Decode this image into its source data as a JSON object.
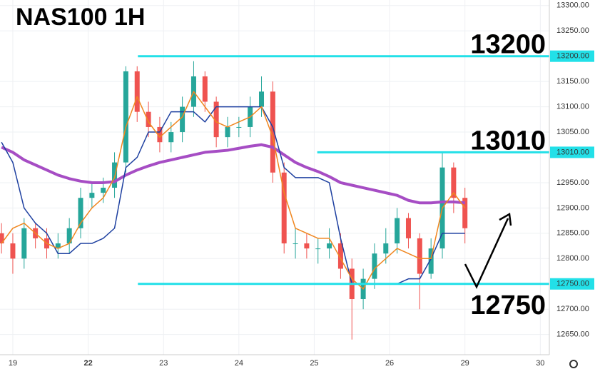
{
  "chart_data": {
    "type": "candlestick",
    "title": "NAS100 1H",
    "xlim": [
      -0.17,
      7.12
    ],
    "xticks": [
      {
        "value": 0,
        "label": "19"
      },
      {
        "value": 1,
        "label": "22"
      },
      {
        "value": 2,
        "label": "23"
      },
      {
        "value": 3,
        "label": "24"
      },
      {
        "value": 4,
        "label": "25"
      },
      {
        "value": 5,
        "label": "26"
      },
      {
        "value": 6,
        "label": "29"
      },
      {
        "value": 7,
        "label": "30"
      }
    ],
    "ylim": [
      12610,
      13311
    ],
    "yticks": [
      {
        "value": 12650,
        "label": "12650.00"
      },
      {
        "value": 12700,
        "label": "12700.00"
      },
      {
        "value": 12800,
        "label": "12800.00"
      },
      {
        "value": 12850,
        "label": "12850.00"
      },
      {
        "value": 12900,
        "label": "12900.00"
      },
      {
        "value": 12950,
        "label": "12950.00"
      },
      {
        "value": 13050,
        "label": "13050.00"
      },
      {
        "value": 13100,
        "label": "13100.00"
      },
      {
        "value": 13150,
        "label": "13150.00"
      },
      {
        "value": 13250,
        "label": "13250.00"
      },
      {
        "value": 13300,
        "label": "13300.00"
      }
    ],
    "grid": true,
    "up_color": "#26a69a",
    "down_color": "#ef5350",
    "x": [
      -0.15,
      0,
      0.15,
      0.3,
      0.45,
      0.6,
      0.75,
      0.9,
      1.05,
      1.2,
      1.35,
      1.5,
      1.65,
      1.8,
      1.95,
      2.1,
      2.25,
      2.4,
      2.55,
      2.7,
      2.85,
      3,
      3.15,
      3.3,
      3.45,
      3.6,
      3.75,
      3.9,
      4.05,
      4.2,
      4.35,
      4.5,
      4.65,
      4.8,
      4.95,
      5.1,
      5.25,
      5.4,
      5.55,
      5.7,
      5.85,
      6
    ],
    "open": [
      12850,
      12830,
      12800,
      12860,
      12840,
      12820,
      12830,
      12860,
      12920,
      12930,
      12940,
      12990,
      13170,
      13090,
      13060,
      13030,
      13050,
      13100,
      13160,
      13110,
      13040,
      13060,
      13060,
      13100,
      13130,
      12970,
      12830,
      12830,
      12820,
      12820,
      12830,
      12780,
      12720,
      12760,
      12810,
      12830,
      12880,
      12840,
      12770,
      12820,
      12980,
      12920
    ],
    "close": [
      12830,
      12800,
      12860,
      12840,
      12820,
      12830,
      12860,
      12920,
      12930,
      12940,
      12990,
      13170,
      13090,
      13060,
      13030,
      13050,
      13100,
      13160,
      13110,
      13040,
      13060,
      13060,
      13100,
      13130,
      12970,
      12830,
      12830,
      12820,
      12820,
      12830,
      12780,
      12720,
      12760,
      12810,
      12830,
      12880,
      12840,
      12770,
      12820,
      12980,
      12920,
      12860
    ],
    "high": [
      12870,
      12850,
      12880,
      12870,
      12860,
      12850,
      12880,
      12940,
      12950,
      12960,
      13010,
      13180,
      13180,
      13110,
      13080,
      13070,
      13120,
      13190,
      13170,
      13120,
      13080,
      13080,
      13120,
      13160,
      13150,
      12990,
      12860,
      12850,
      12840,
      12860,
      12850,
      12800,
      12780,
      12830,
      12860,
      12900,
      12890,
      12850,
      12840,
      13010,
      12990,
      12940
    ],
    "low": [
      12810,
      12770,
      12780,
      12820,
      12800,
      12800,
      12810,
      12840,
      12900,
      12910,
      12920,
      12970,
      13070,
      13040,
      13010,
      13010,
      13030,
      13080,
      13090,
      13020,
      13020,
      13040,
      13040,
      13080,
      12950,
      12810,
      12800,
      12800,
      12790,
      12800,
      12760,
      12640,
      12700,
      12740,
      12790,
      12810,
      12820,
      12700,
      12760,
      12800,
      12890,
      12830
    ],
    "series": [
      {
        "name": "MA",
        "color": "#a64dc4",
        "width": 4,
        "values": [
          13020,
          13010,
          12995,
          12985,
          12975,
          12965,
          12958,
          12953,
          12950,
          12950,
          12952,
          12965,
          12975,
          12983,
          12990,
          12995,
          13000,
          13005,
          13010,
          13012,
          13014,
          13018,
          13022,
          13025,
          13020,
          13005,
          12990,
          12980,
          12972,
          12962,
          12950,
          12945,
          12940,
          12935,
          12930,
          12925,
          12915,
          12910,
          12910,
          12912,
          12912,
          12910
        ]
      },
      {
        "name": "Kijun",
        "color": "#1e40a0",
        "width": 1.5,
        "values": [
          13030,
          12990,
          12900,
          12870,
          12850,
          12810,
          12810,
          12830,
          12830,
          12840,
          12860,
          12980,
          13000,
          13050,
          13050,
          13090,
          13090,
          13090,
          13070,
          13100,
          13100,
          13100,
          13100,
          13100,
          13060,
          12980,
          12960,
          12960,
          12960,
          12950,
          12840,
          12750,
          12750,
          12750,
          12750,
          12750,
          12760,
          12760,
          12800,
          12850,
          12850,
          12850
        ]
      },
      {
        "name": "Tenkan",
        "color": "#f0861f",
        "width": 1.5,
        "values": [
          12830,
          12860,
          12870,
          12850,
          12830,
          12820,
          12830,
          12870,
          12900,
          12920,
          12960,
          13060,
          13120,
          13070,
          13040,
          13060,
          13080,
          13130,
          13100,
          13070,
          13060,
          13070,
          13080,
          13100,
          13040,
          12930,
          12860,
          12850,
          12840,
          12840,
          12800,
          12760,
          12740,
          12780,
          12800,
          12820,
          12810,
          12800,
          12800,
          12900,
          12930,
          12900
        ]
      }
    ],
    "levels": [
      {
        "value": 13200,
        "label": "13200",
        "axis_label": "13200.00",
        "x_start": 1.66
      },
      {
        "value": 13010,
        "label": "13010",
        "axis_label": "13010.00",
        "x_start": 4.04
      },
      {
        "value": 12750,
        "label": "12750",
        "axis_label": "12750.00",
        "x_start": 1.66
      }
    ],
    "level_color": "#22e0e8"
  }
}
